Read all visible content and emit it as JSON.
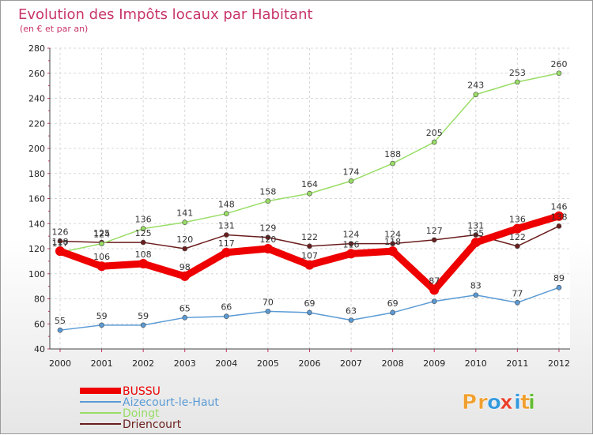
{
  "chart_data": {
    "type": "line",
    "title": "Evolution des Impôts locaux par Habitant",
    "subtitle": "(en € et par an)",
    "xlabel": "",
    "ylabel": "",
    "x": [
      "2000",
      "2001",
      "2002",
      "2003",
      "2004",
      "2005",
      "2006",
      "2007",
      "2008",
      "2009",
      "2010",
      "2011",
      "2012"
    ],
    "ylim": [
      40,
      280
    ],
    "yticks": [
      "40",
      "60",
      "80",
      "100",
      "120",
      "140",
      "160",
      "180",
      "200",
      "220",
      "240",
      "260",
      "280"
    ],
    "grid": true,
    "legend_position": "bottom-left",
    "series": [
      {
        "name": "Driencourt",
        "color": "#6b1d1d",
        "values": [
          126,
          125,
          125,
          120,
          131,
          129,
          122,
          124,
          124,
          127,
          131,
          122,
          138
        ],
        "labels": [
          "126",
          "125",
          "125",
          "120",
          "131",
          "129",
          "122",
          "124",
          "124",
          "127",
          "131",
          "122",
          "138"
        ]
      },
      {
        "name": "Aizecourt-le-Haut",
        "color": "#5b9bd5",
        "values": [
          55,
          59,
          59,
          65,
          66,
          70,
          69,
          63,
          69,
          78,
          83,
          77,
          89
        ],
        "labels": [
          "55",
          "59",
          "59",
          "65",
          "66",
          "70",
          "69",
          "63",
          "69",
          "",
          "83",
          "77",
          "89"
        ]
      },
      {
        "name": "Doingt",
        "color": "#99dd66",
        "values": [
          117,
          124,
          136,
          141,
          148,
          158,
          164,
          174,
          188,
          205,
          243,
          253,
          260
        ],
        "labels": [
          "117",
          "124",
          "136",
          "141",
          "148",
          "158",
          "164",
          "174",
          "188",
          "205",
          "243",
          "253",
          "260"
        ]
      },
      {
        "name": "BUSSU",
        "color": "#ee0000",
        "values": [
          118,
          106,
          108,
          98,
          117,
          120,
          107,
          116,
          118,
          87,
          125,
          136,
          146
        ],
        "labels": [
          "118",
          "106",
          "108",
          "98",
          "117",
          "120",
          "107",
          "116",
          "118",
          "87",
          "125",
          "136",
          "146"
        ]
      }
    ],
    "legend_order": [
      "BUSSU",
      "Aizecourt-le-Haut",
      "Doingt",
      "Driencourt"
    ]
  },
  "branding": {
    "logo_text": "Proxiti",
    "logo_letters": [
      "P",
      "r",
      "o",
      "x",
      "i",
      "t",
      "i"
    ],
    "logo_colors": [
      "#f0a030",
      "#f0a030",
      "#3399dd",
      "#e8412c",
      "#3399dd",
      "#f0a030",
      "#66bb33"
    ]
  }
}
